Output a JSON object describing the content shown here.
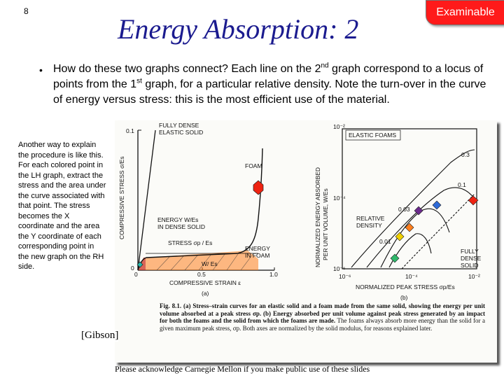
{
  "slide_number": "8",
  "title": "Energy Absorption: 2",
  "badge": "Examinable",
  "bullet": "•",
  "main_text": {
    "part1": "How do these two graphs connect? Each line on the 2",
    "sup1": "nd",
    "part2": " graph correspond to a locus of points from the 1",
    "sup2": "st",
    "part3": " graph, for a particular relative density.  Note the turn-over in the curve of energy versus stress: this is the most efficient use of the material."
  },
  "side_note": "Another way to explain the procedure is like this.  For each colored point in the LH graph, extract the stress and the area under the curve associated with that point.  The stress becomes the X coordinate and the area the Y coordinate of each corresponding point in the new graph on the RH side.",
  "gibson": "[Gibson]",
  "acknowledgement": "Please acknowledge Carnegie Mellon if you make public use of these slides",
  "left_graph": {
    "y_tick_top": "0.1",
    "y_tick_bottom": "0",
    "x_ticks": [
      "0",
      "0.5",
      "1.0"
    ],
    "ylabel": "COMPRESSIVE STRESS σ/Es",
    "xlabel": "COMPRESSIVE STRAIN ε",
    "sublabel": "(a)",
    "label_dense_1": "FULLY DENSE",
    "label_dense_2": "ELASTIC SOLID",
    "label_foam": "FOAM",
    "label_energy_1": "ENERGY  W/Es",
    "label_energy_2": "IN DENSE SOLID",
    "label_stress": "STRESS  σp / Es",
    "label_efoam_1": "ENERGY",
    "label_efoam_2": "IN FOAM",
    "label_w": "W/ Es"
  },
  "right_graph": {
    "title": "ELASTIC FOAMS",
    "y_ticks": [
      "10⁻²",
      "10⁻⁴",
      "10⁻⁶"
    ],
    "x_ticks": [
      "10⁻⁶",
      "10⁻⁴",
      "10⁻²"
    ],
    "ylabel_1": "NORMALIZED ENERGY ABSORBED",
    "ylabel_2": "PER UNIT VOLUME,  W/Es",
    "xlabel": "NORMALIZED  PEAK STRESS  σp/Es",
    "sublabel": "(b)",
    "curve_labels": [
      "0.3",
      "0.1",
      "0.03",
      "0.01"
    ],
    "relative_density_1": "RELATIVE",
    "relative_density_2": "DENSITY",
    "fully_dense_1": "FULLY",
    "fully_dense_2": "DENSE",
    "fully_dense_3": "SOLID"
  },
  "caption": {
    "bold_lead": "Fig. 8.1. (a) ",
    "bold_text": "Stress–strain curves for an elastic solid and a foam made from the same solid, showing the energy per unit volume absorbed at a peak stress σp. (b) Energy absorbed per unit volume against peak stress generated by an impact for both the foams and the solid from which the foams are made.",
    "rest": " The foams always absorb more energy than the solid for a given maximum peak stress, σp. Both axes are normalized by the solid modulus, for reasons explained later."
  },
  "colors": {
    "title": "#1b1b8f",
    "badge_bg": "#ff1a1a",
    "point_red": "#ee2211",
    "point_orange": "#ff7f1e",
    "point_purple": "#6b2a8c",
    "point_blue": "#2f6bd8",
    "point_yellow": "#f0d000",
    "point_green": "#2fb86a",
    "point_teal": "#25b5a8"
  }
}
